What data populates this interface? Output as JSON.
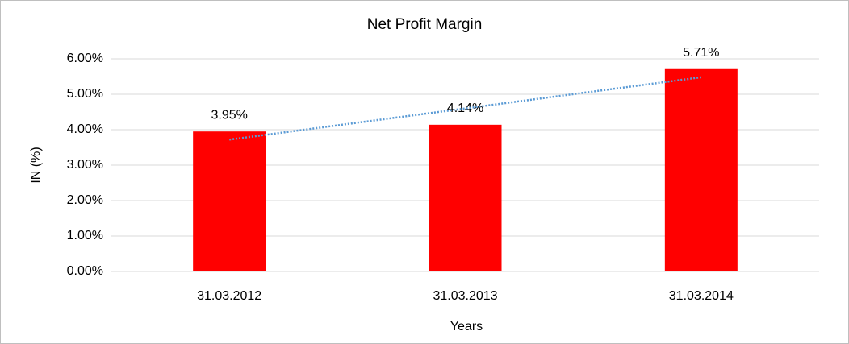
{
  "chart_data": {
    "type": "bar",
    "title": "Net Profit Margin",
    "x_label": "Years",
    "y_label": "IN (%)",
    "categories": [
      "31.03.2012",
      "31.03.2013",
      "31.03.2014"
    ],
    "values": [
      3.95,
      4.14,
      5.71
    ],
    "value_labels": [
      "3.95%",
      "4.14%",
      "5.71%"
    ],
    "color": "#ff0000",
    "ylim": [
      0,
      6
    ],
    "yticks": [
      {
        "value": 0,
        "label": "0.00%"
      },
      {
        "value": 1,
        "label": "1.00%"
      },
      {
        "value": 2,
        "label": "2.00%"
      },
      {
        "value": 3,
        "label": "3.00%"
      },
      {
        "value": 4,
        "label": "4.00%"
      },
      {
        "value": 5,
        "label": "5.00%"
      },
      {
        "value": 6,
        "label": "6.00%"
      }
    ],
    "grid": true,
    "trendline": "linear",
    "trendline_color": "#5b9bd5"
  }
}
